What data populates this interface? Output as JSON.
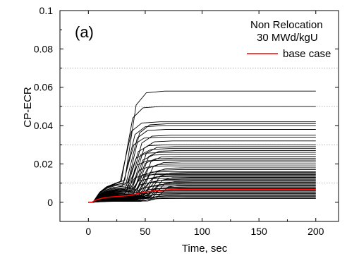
{
  "chart_data": {
    "type": "line",
    "panel_label": "(a)",
    "xlabel": "Time, sec",
    "ylabel": "CP-ECR",
    "xlim": [
      -25,
      220
    ],
    "ylim": [
      -0.01,
      0.1
    ],
    "x_ticks": [
      0,
      50,
      100,
      150,
      200
    ],
    "y_ticks": [
      0,
      0.02,
      0.04,
      0.06,
      0.08,
      0.1
    ],
    "y_tick_labels": [
      "0",
      "0.02",
      "0.04",
      "0.06",
      "0.08",
      "0.1"
    ],
    "y_gridlines": [
      0.01,
      0.03,
      0.05,
      0.07
    ],
    "annotation_lines": [
      "Non Relocation",
      "30 MWd/kgU"
    ],
    "legend": {
      "label": "base case",
      "color": "#ff0000",
      "position": "top-right"
    },
    "base_case": {
      "color": "#ff0000",
      "final_value": 0.0068,
      "x": [
        0,
        3,
        8,
        15,
        25,
        35,
        40,
        50,
        60,
        70,
        80,
        200
      ],
      "y": [
        0,
        0,
        0.0015,
        0.0025,
        0.003,
        0.0035,
        0.004,
        0.0055,
        0.006,
        0.0065,
        0.0068,
        0.0068
      ]
    },
    "sample_runs": {
      "color": "#000000",
      "final_values": [
        0.058,
        0.05,
        0.042,
        0.041,
        0.04,
        0.038,
        0.035,
        0.034,
        0.032,
        0.03,
        0.029,
        0.028,
        0.027,
        0.026,
        0.025,
        0.024,
        0.023,
        0.022,
        0.021,
        0.02,
        0.019,
        0.018,
        0.017,
        0.016,
        0.0155,
        0.015,
        0.0145,
        0.014,
        0.0135,
        0.013,
        0.0125,
        0.012,
        0.0115,
        0.011,
        0.0105,
        0.01,
        0.0095,
        0.009,
        0.0085,
        0.008,
        0.0075,
        0.0072,
        0.0065,
        0.006,
        0.0055,
        0.005,
        0.0045,
        0.004,
        0.0035,
        0.003,
        0.0025,
        0.002
      ],
      "rise_times": [
        37,
        34,
        33,
        40,
        36,
        38,
        42,
        35,
        44,
        39,
        46,
        41,
        48,
        37,
        43,
        50,
        45,
        38,
        52,
        47,
        40,
        55,
        49,
        42,
        58,
        44,
        36,
        51,
        46,
        60,
        39,
        53,
        48,
        62,
        41,
        56,
        50,
        65,
        43,
        58,
        52,
        45,
        48,
        47,
        50,
        44,
        52,
        46,
        55,
        49,
        57,
        51
      ]
    }
  }
}
